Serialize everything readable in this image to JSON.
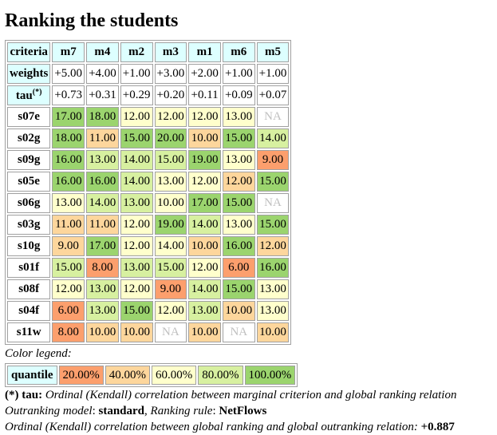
{
  "title": "Ranking the students",
  "table": {
    "header_label": "criteria",
    "criteria": [
      "m7",
      "m4",
      "m2",
      "m3",
      "m1",
      "m6",
      "m5"
    ],
    "weights_label": "weights",
    "weights": [
      "+5.00",
      "+4.00",
      "+1.00",
      "+3.00",
      "+2.00",
      "+1.00",
      "+1.00"
    ],
    "tau_label": "tau",
    "tau_mark": "(*)",
    "tau": [
      "+0.73",
      "+0.31",
      "+0.29",
      "+0.20",
      "+0.11",
      "+0.09",
      "+0.07"
    ],
    "rows": [
      {
        "label": "s07e",
        "cells": [
          [
            "17.00",
            5
          ],
          [
            "18.00",
            5
          ],
          [
            "12.00",
            3
          ],
          [
            "12.00",
            3
          ],
          [
            "12.00",
            3
          ],
          [
            "13.00",
            3
          ],
          [
            "NA",
            0
          ]
        ]
      },
      {
        "label": "s02g",
        "cells": [
          [
            "18.00",
            5
          ],
          [
            "11.00",
            2
          ],
          [
            "15.00",
            5
          ],
          [
            "20.00",
            5
          ],
          [
            "10.00",
            2
          ],
          [
            "15.00",
            5
          ],
          [
            "14.00",
            4
          ]
        ]
      },
      {
        "label": "s09g",
        "cells": [
          [
            "16.00",
            5
          ],
          [
            "13.00",
            4
          ],
          [
            "14.00",
            4
          ],
          [
            "15.00",
            4
          ],
          [
            "19.00",
            5
          ],
          [
            "13.00",
            3
          ],
          [
            "9.00",
            1
          ]
        ]
      },
      {
        "label": "s05e",
        "cells": [
          [
            "16.00",
            5
          ],
          [
            "16.00",
            5
          ],
          [
            "14.00",
            4
          ],
          [
            "13.00",
            3
          ],
          [
            "12.00",
            3
          ],
          [
            "12.00",
            2
          ],
          [
            "15.00",
            5
          ]
        ]
      },
      {
        "label": "s06g",
        "cells": [
          [
            "13.00",
            3
          ],
          [
            "14.00",
            4
          ],
          [
            "13.00",
            4
          ],
          [
            "10.00",
            3
          ],
          [
            "17.00",
            5
          ],
          [
            "15.00",
            5
          ],
          [
            "NA",
            0
          ]
        ]
      },
      {
        "label": "s03g",
        "cells": [
          [
            "11.00",
            2
          ],
          [
            "11.00",
            2
          ],
          [
            "12.00",
            3
          ],
          [
            "19.00",
            5
          ],
          [
            "14.00",
            4
          ],
          [
            "13.00",
            3
          ],
          [
            "15.00",
            5
          ]
        ]
      },
      {
        "label": "s10g",
        "cells": [
          [
            "9.00",
            2
          ],
          [
            "17.00",
            5
          ],
          [
            "12.00",
            3
          ],
          [
            "14.00",
            3
          ],
          [
            "10.00",
            2
          ],
          [
            "16.00",
            5
          ],
          [
            "12.00",
            2
          ]
        ]
      },
      {
        "label": "s01f",
        "cells": [
          [
            "15.00",
            4
          ],
          [
            "8.00",
            1
          ],
          [
            "13.00",
            4
          ],
          [
            "15.00",
            4
          ],
          [
            "12.00",
            3
          ],
          [
            "6.00",
            1
          ],
          [
            "16.00",
            5
          ]
        ]
      },
      {
        "label": "s08f",
        "cells": [
          [
            "12.00",
            3
          ],
          [
            "13.00",
            4
          ],
          [
            "12.00",
            3
          ],
          [
            "9.00",
            1
          ],
          [
            "14.00",
            4
          ],
          [
            "15.00",
            5
          ],
          [
            "13.00",
            3
          ]
        ]
      },
      {
        "label": "s04f",
        "cells": [
          [
            "6.00",
            1
          ],
          [
            "13.00",
            4
          ],
          [
            "15.00",
            5
          ],
          [
            "12.00",
            3
          ],
          [
            "13.00",
            4
          ],
          [
            "10.00",
            2
          ],
          [
            "13.00",
            3
          ]
        ]
      },
      {
        "label": "s11w",
        "cells": [
          [
            "8.00",
            1
          ],
          [
            "10.00",
            2
          ],
          [
            "10.00",
            2
          ],
          [
            "NA",
            0
          ],
          [
            "10.00",
            2
          ],
          [
            "NA",
            0
          ],
          [
            "10.00",
            2
          ]
        ]
      }
    ]
  },
  "colors": {
    "header": "#ddffff",
    "q1": "#fc9f6d",
    "q2": "#fdd69c",
    "q3": "#ffffcc",
    "q4": "#d7f0a0",
    "q5": "#9bd46e",
    "na_text": "#c0c0c0"
  },
  "legend": {
    "title": "Color legend:",
    "label": "quantile",
    "items": [
      "20.00%",
      "40.00%",
      "60.00%",
      "80.00%",
      "100.00%"
    ]
  },
  "footer": {
    "tau_note_mark": "(*) tau:",
    "tau_note_text": " Ordinal (Kendall) correlation between marginal criterion and global ranking relation",
    "model_label": "Outranking model",
    "model_value": "standard",
    "rule_label": "Ranking rule",
    "rule_value": "NetFlows",
    "corr_text": "Ordinal (Kendall) correlation between global ranking and global outranking relation:",
    "corr_value": "+0.887"
  }
}
